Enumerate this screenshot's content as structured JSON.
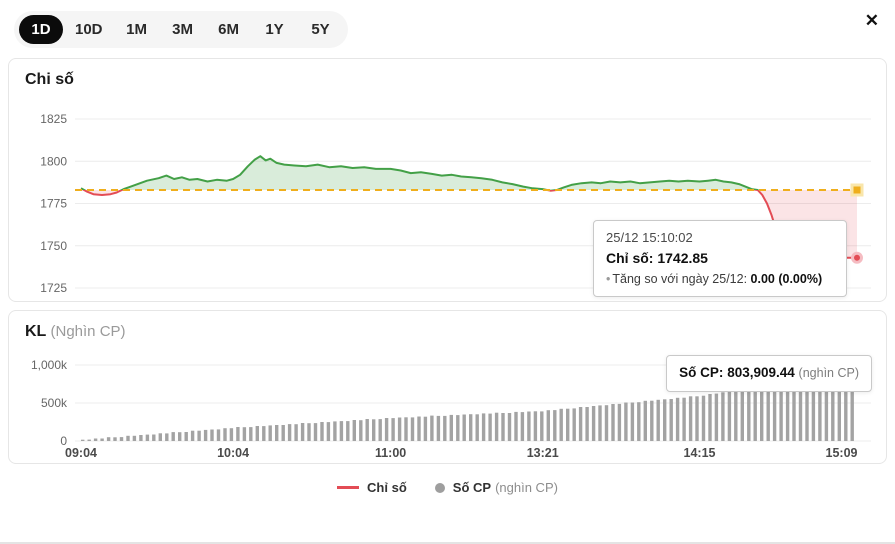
{
  "toolbar": {
    "ranges": [
      {
        "label": "1D",
        "active": true
      },
      {
        "label": "10D",
        "active": false
      },
      {
        "label": "1M",
        "active": false
      },
      {
        "label": "3M",
        "active": false
      },
      {
        "label": "6M",
        "active": false
      },
      {
        "label": "1Y",
        "active": false
      },
      {
        "label": "5Y",
        "active": false
      }
    ],
    "close_icon": "✕"
  },
  "index_panel": {
    "title": "Chi số",
    "tooltip": {
      "datetime": "25/12 15:10:02",
      "index_label": "Chỉ số:",
      "index_value": "1742.85",
      "bullet": "•",
      "change_label": "Tăng so với ngày 25/12:",
      "change_value": "0.00 (0.00%)"
    }
  },
  "volume_panel": {
    "title": "KL",
    "title_unit": "(Nghìn CP)",
    "tooltip": {
      "label": "Số CP:",
      "value": "803,909.44",
      "unit": "(nghìn CP)"
    }
  },
  "legend": {
    "index_label": "Chỉ số",
    "volume_label": "Số CP",
    "volume_unit": "(nghìn CP)"
  },
  "chart_data": [
    {
      "type": "line",
      "title": "Chi số",
      "yticks": [
        1825,
        1800,
        1775,
        1750,
        1725
      ],
      "ylim": [
        1722,
        1830
      ],
      "reference_value": 1783.0,
      "last_value": 1742.85,
      "last_time": "25/12 15:10:02",
      "change": "0.00 (0.00%)",
      "colors": {
        "up": "#43a047",
        "down": "#e34c55",
        "reference": "#efae1c"
      },
      "points": [
        [
          0.0,
          1784
        ],
        [
          0.008,
          1782
        ],
        [
          0.016,
          1780.5
        ],
        [
          0.027,
          1780
        ],
        [
          0.038,
          1780.5
        ],
        [
          0.046,
          1781.5
        ],
        [
          0.055,
          1783.5
        ],
        [
          0.07,
          1786
        ],
        [
          0.085,
          1788.5
        ],
        [
          0.1,
          1790
        ],
        [
          0.11,
          1791.5
        ],
        [
          0.12,
          1789.5
        ],
        [
          0.13,
          1790.5
        ],
        [
          0.14,
          1789
        ],
        [
          0.15,
          1789.5
        ],
        [
          0.163,
          1788
        ],
        [
          0.175,
          1789
        ],
        [
          0.188,
          1788.5
        ],
        [
          0.196,
          1789.5
        ],
        [
          0.205,
          1792
        ],
        [
          0.215,
          1797
        ],
        [
          0.224,
          1801
        ],
        [
          0.231,
          1803
        ],
        [
          0.238,
          1800.5
        ],
        [
          0.244,
          1801.5
        ],
        [
          0.252,
          1799
        ],
        [
          0.262,
          1798
        ],
        [
          0.275,
          1797.5
        ],
        [
          0.29,
          1797
        ],
        [
          0.305,
          1798
        ],
        [
          0.32,
          1796.5
        ],
        [
          0.335,
          1797
        ],
        [
          0.35,
          1796
        ],
        [
          0.365,
          1796.5
        ],
        [
          0.38,
          1795.5
        ],
        [
          0.399,
          1795.5
        ],
        [
          0.412,
          1794.5
        ],
        [
          0.425,
          1793
        ],
        [
          0.438,
          1793.5
        ],
        [
          0.452,
          1792.5
        ],
        [
          0.465,
          1791.5
        ],
        [
          0.478,
          1792
        ],
        [
          0.49,
          1791
        ],
        [
          0.503,
          1790.5
        ],
        [
          0.516,
          1790
        ],
        [
          0.53,
          1789
        ],
        [
          0.543,
          1787.5
        ],
        [
          0.556,
          1786.5
        ],
        [
          0.57,
          1785
        ],
        [
          0.582,
          1784
        ],
        [
          0.595,
          1783.5
        ],
        [
          0.605,
          1782.6
        ],
        [
          0.613,
          1783
        ],
        [
          0.622,
          1784.5
        ],
        [
          0.632,
          1786
        ],
        [
          0.645,
          1787
        ],
        [
          0.658,
          1787.5
        ],
        [
          0.67,
          1787
        ],
        [
          0.682,
          1788
        ],
        [
          0.695,
          1787.5
        ],
        [
          0.708,
          1788
        ],
        [
          0.72,
          1787
        ],
        [
          0.733,
          1787.5
        ],
        [
          0.746,
          1788
        ],
        [
          0.758,
          1788.5
        ],
        [
          0.77,
          1788
        ],
        [
          0.782,
          1788.5
        ],
        [
          0.797,
          1788
        ],
        [
          0.808,
          1788.5
        ],
        [
          0.818,
          1789
        ],
        [
          0.828,
          1788
        ],
        [
          0.838,
          1787.5
        ],
        [
          0.848,
          1786.5
        ],
        [
          0.856,
          1785
        ],
        [
          0.864,
          1783.5
        ],
        [
          0.872,
          1783
        ],
        [
          0.878,
          1780
        ],
        [
          0.884,
          1775
        ],
        [
          0.89,
          1768
        ],
        [
          0.896,
          1759
        ],
        [
          0.902,
          1750
        ],
        [
          0.908,
          1745
        ],
        [
          0.914,
          1743.2
        ],
        [
          0.925,
          1743
        ],
        [
          0.94,
          1742.9
        ],
        [
          0.955,
          1743.1
        ],
        [
          0.97,
          1742.9
        ],
        [
          0.985,
          1742.9
        ],
        [
          1.0,
          1742.85
        ]
      ]
    },
    {
      "type": "bar",
      "title": "KL (Nghìn CP)",
      "yticks": [
        {
          "value": 1000,
          "label": "1,000k"
        },
        {
          "value": 500,
          "label": "500k"
        },
        {
          "value": 0,
          "label": "0"
        }
      ],
      "ymax": 1000,
      "xticks": [
        {
          "f": 0.0,
          "label": "09:04"
        },
        {
          "f": 0.196,
          "label": "10:04"
        },
        {
          "f": 0.399,
          "label": "11:00"
        },
        {
          "f": 0.595,
          "label": "13:21"
        },
        {
          "f": 0.797,
          "label": "14:15"
        },
        {
          "f": 0.98,
          "label": "15:09"
        }
      ],
      "last_value": 803909.44,
      "colors": {
        "bar": "#a3a3a3"
      },
      "values": [
        17,
        19,
        33,
        33,
        50,
        49,
        51,
        68,
        68,
        79,
        84,
        86,
        101,
        100,
        117,
        116,
        119,
        135,
        135,
        146,
        151,
        153,
        168,
        168,
        184,
        181,
        183,
        198,
        196,
        205,
        210,
        210,
        223,
        221,
        237,
        234,
        235,
        250,
        249,
        258,
        262,
        262,
        276,
        274,
        289,
        286,
        288,
        303,
        301,
        309,
        312,
        311,
        323,
        320,
        334,
        330,
        330,
        344,
        341,
        349,
        352,
        351,
        363,
        360,
        373,
        369,
        369,
        383,
        380,
        388,
        391,
        390,
        405,
        406,
        424,
        425,
        429,
        447,
        448,
        460,
        468,
        471,
        487,
        488,
        506,
        506,
        511,
        529,
        530,
        542,
        549,
        553,
        569,
        570,
        588,
        588,
        596,
        619,
        624,
        641,
        653,
        660,
        681,
        686,
        709,
        714,
        722,
        745,
        744,
        753,
        758,
        758,
        771,
        770,
        785,
        783,
        784,
        799,
        798,
        803.91
      ]
    }
  ]
}
